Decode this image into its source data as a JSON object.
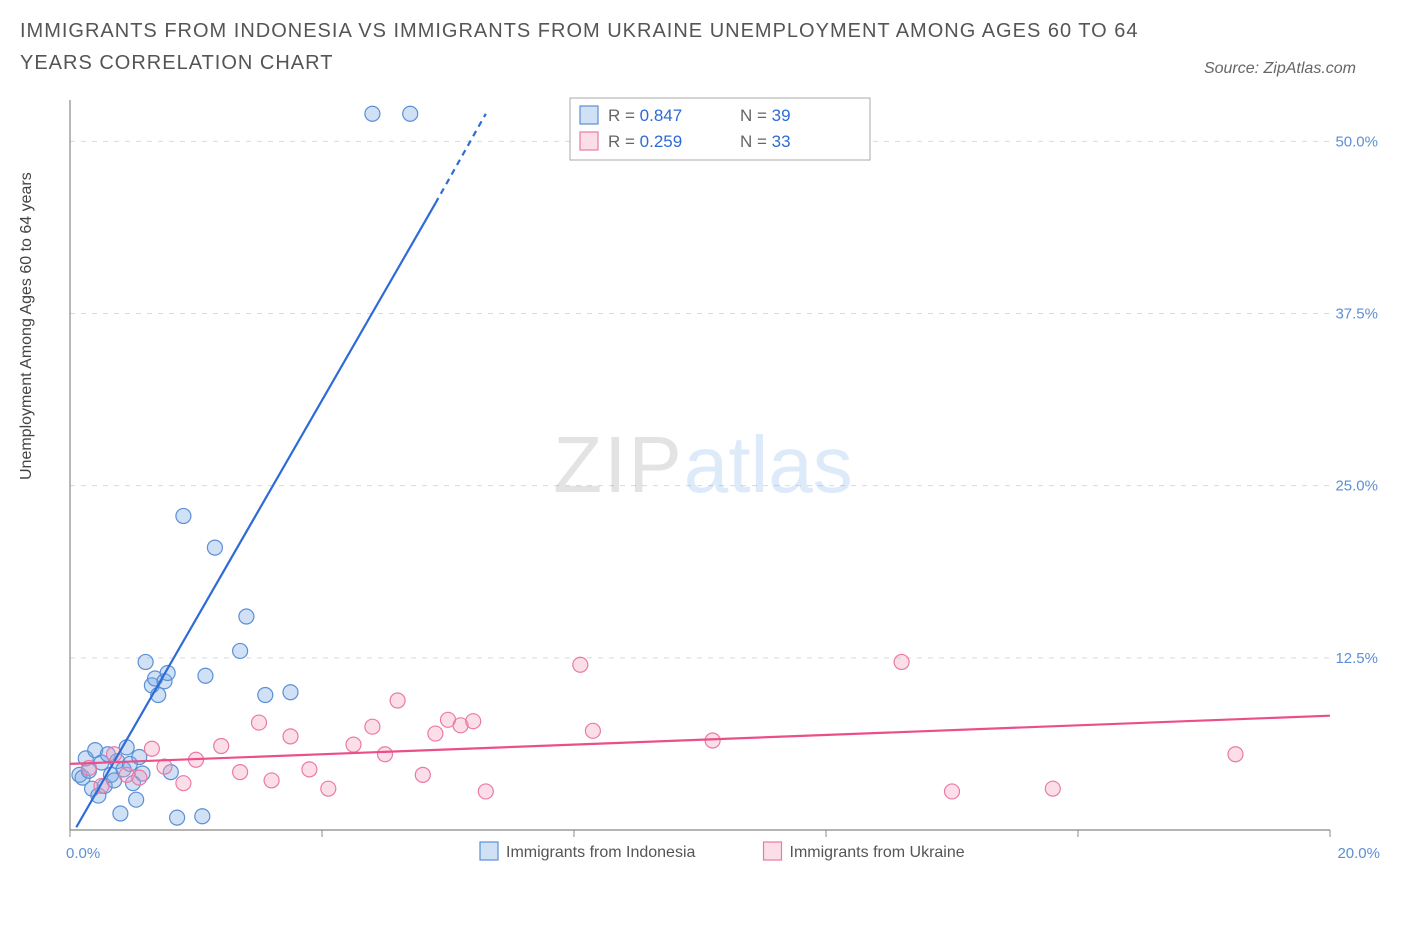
{
  "title": "IMMIGRANTS FROM INDONESIA VS IMMIGRANTS FROM UKRAINE UNEMPLOYMENT AMONG AGES 60 TO 64 YEARS CORRELATION CHART",
  "source": "Source: ZipAtlas.com",
  "ylabel": "Unemployment Among Ages 60 to 64 years",
  "watermark": {
    "zip": "ZIP",
    "atlas": "atlas"
  },
  "chart": {
    "type": "scatter",
    "xlim": [
      0,
      20
    ],
    "ylim": [
      0,
      53
    ],
    "x_ticks": [
      0,
      4,
      8,
      12,
      16,
      20
    ],
    "x_tick_labels": [
      "0.0%",
      "",
      "",
      "",
      "",
      "20.0%"
    ],
    "y_ticks": [
      12.5,
      25.0,
      37.5,
      50.0
    ],
    "y_tick_labels": [
      "12.5%",
      "25.0%",
      "37.5%",
      "50.0%"
    ],
    "grid_color": "#d9d9d9",
    "axis_color": "#888888",
    "tick_label_color": "#5b8fd6",
    "tick_fontsize": 15,
    "marker_radius": 7.5,
    "marker_stroke_width": 1.2,
    "trend_line_width": 2.2,
    "series": [
      {
        "name": "Immigrants from Indonesia",
        "fill": "rgba(120,170,230,0.35)",
        "stroke": "#5b8fd6",
        "line_color": "#2e6bd6",
        "trend": {
          "x1": 0.1,
          "y1": 0.2,
          "x2_solid": 5.8,
          "y2_solid": 45.5,
          "x2_dash": 6.6,
          "y2_dash": 52.0
        },
        "R_label": "R = ",
        "R_value": "0.847",
        "N_label": "N = ",
        "N_value": "39",
        "points": [
          [
            0.15,
            4.0
          ],
          [
            0.2,
            3.8
          ],
          [
            0.25,
            5.2
          ],
          [
            0.3,
            4.3
          ],
          [
            0.35,
            3.0
          ],
          [
            0.4,
            5.8
          ],
          [
            0.45,
            2.5
          ],
          [
            0.5,
            4.9
          ],
          [
            0.55,
            3.2
          ],
          [
            0.6,
            5.5
          ],
          [
            0.65,
            4.0
          ],
          [
            0.7,
            3.6
          ],
          [
            0.75,
            5.0
          ],
          [
            0.8,
            1.2
          ],
          [
            0.85,
            4.4
          ],
          [
            0.9,
            6.0
          ],
          [
            0.95,
            4.8
          ],
          [
            1.0,
            3.4
          ],
          [
            1.05,
            2.2
          ],
          [
            1.1,
            5.3
          ],
          [
            1.15,
            4.1
          ],
          [
            1.2,
            12.2
          ],
          [
            1.3,
            10.5
          ],
          [
            1.35,
            11.0
          ],
          [
            1.4,
            9.8
          ],
          [
            1.5,
            10.8
          ],
          [
            1.55,
            11.4
          ],
          [
            1.6,
            4.2
          ],
          [
            1.7,
            0.9
          ],
          [
            1.8,
            22.8
          ],
          [
            2.1,
            1.0
          ],
          [
            2.15,
            11.2
          ],
          [
            2.3,
            20.5
          ],
          [
            2.7,
            13.0
          ],
          [
            2.8,
            15.5
          ],
          [
            3.1,
            9.8
          ],
          [
            3.5,
            10.0
          ],
          [
            4.8,
            52.0
          ],
          [
            5.4,
            52.0
          ]
        ]
      },
      {
        "name": "Immigrants from Ukraine",
        "fill": "rgba(245,160,190,0.35)",
        "stroke": "#ea7aa5",
        "line_color": "#ea4f8a",
        "trend": {
          "x1": 0.0,
          "y1": 4.8,
          "x2_solid": 20.0,
          "y2_solid": 8.3
        },
        "R_label": "R = ",
        "R_value": "0.259",
        "N_label": "N = ",
        "N_value": "33",
        "points": [
          [
            0.3,
            4.5
          ],
          [
            0.5,
            3.2
          ],
          [
            0.7,
            5.5
          ],
          [
            0.9,
            4.0
          ],
          [
            1.1,
            3.8
          ],
          [
            1.3,
            5.9
          ],
          [
            1.5,
            4.6
          ],
          [
            1.8,
            3.4
          ],
          [
            2.0,
            5.1
          ],
          [
            2.4,
            6.1
          ],
          [
            2.7,
            4.2
          ],
          [
            3.0,
            7.8
          ],
          [
            3.2,
            3.6
          ],
          [
            3.5,
            6.8
          ],
          [
            3.8,
            4.4
          ],
          [
            4.1,
            3.0
          ],
          [
            4.5,
            6.2
          ],
          [
            4.8,
            7.5
          ],
          [
            5.0,
            5.5
          ],
          [
            5.2,
            9.4
          ],
          [
            5.6,
            4.0
          ],
          [
            5.8,
            7.0
          ],
          [
            6.0,
            8.0
          ],
          [
            6.2,
            7.6
          ],
          [
            6.4,
            7.9
          ],
          [
            6.6,
            2.8
          ],
          [
            8.1,
            12.0
          ],
          [
            8.3,
            7.2
          ],
          [
            10.2,
            6.5
          ],
          [
            13.2,
            12.2
          ],
          [
            14.0,
            2.8
          ],
          [
            15.6,
            3.0
          ],
          [
            18.5,
            5.5
          ]
        ]
      }
    ]
  },
  "legend_box": {
    "border_color": "#aaaaaa",
    "text_color": "#666666",
    "value_color": "#2e6bd6",
    "fontsize": 17
  },
  "bottom_legend": {
    "fontsize": 16,
    "text_color": "#555555"
  }
}
